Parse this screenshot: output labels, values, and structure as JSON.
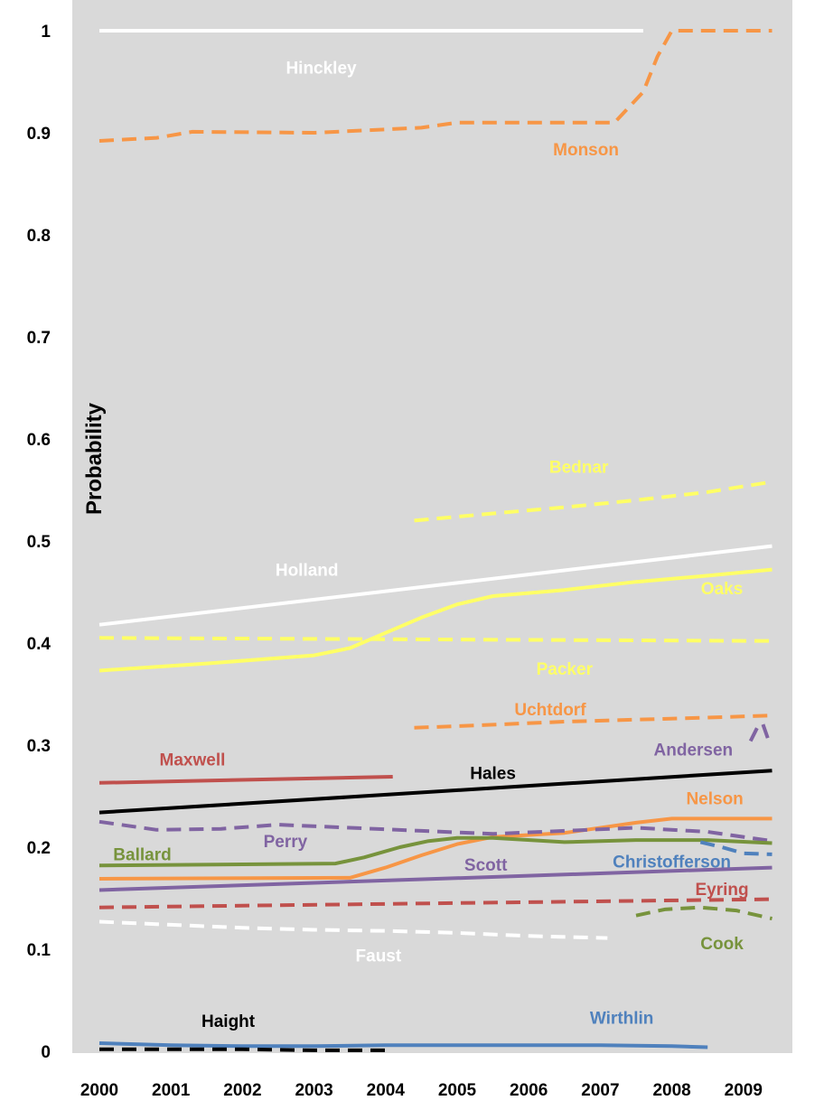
{
  "chart_data": {
    "type": "line",
    "title": "",
    "xlabel": "",
    "ylabel": "Probability",
    "xlim": [
      2000,
      2009
    ],
    "ylim": [
      0,
      1
    ],
    "x_ticks": [
      "2000",
      "2001",
      "2002",
      "2003",
      "2004",
      "2005",
      "2006",
      "2007",
      "2008",
      "2009"
    ],
    "y_ticks": [
      "0",
      "0.1",
      "0.2",
      "0.3",
      "0.4",
      "0.5",
      "0.6",
      "0.7",
      "0.8",
      "0.9",
      "1"
    ],
    "grid": false,
    "background": "#d9d9d9",
    "series": [
      {
        "name": "Hinckley",
        "color": "#ffffff",
        "dash": "solid",
        "x": [
          2000,
          2007.6
        ],
        "y": [
          1.0,
          1.0
        ],
        "label_x": 2003.1,
        "label_y": 0.958
      },
      {
        "name": "Monson",
        "color": "#f79646",
        "dash": "dashed",
        "x": [
          2000,
          2000.8,
          2001.3,
          2003.0,
          2004.5,
          2005.0,
          2007.2,
          2007.6,
          2007.8,
          2008.0,
          2009.4
        ],
        "y": [
          0.892,
          0.895,
          0.901,
          0.9,
          0.905,
          0.91,
          0.91,
          0.94,
          0.975,
          1.0,
          1.0
        ],
        "label_x": 2006.8,
        "label_y": 0.878
      },
      {
        "name": "Bednar",
        "color": "#ffff66",
        "dash": "dashed",
        "x": [
          2004.4,
          2005.5,
          2006.5,
          2007.5,
          2008.5,
          2009.4
        ],
        "y": [
          0.52,
          0.527,
          0.533,
          0.54,
          0.548,
          0.558
        ],
        "label_x": 2006.7,
        "label_y": 0.567
      },
      {
        "name": "Holland",
        "color": "#ffffff",
        "dash": "solid",
        "x": [
          2000,
          2009.4
        ],
        "y": [
          0.418,
          0.495
        ],
        "label_x": 2002.9,
        "label_y": 0.466
      },
      {
        "name": "Oaks",
        "color": "#ffff66",
        "dash": "solid",
        "x": [
          2000,
          2001.5,
          2003.0,
          2003.5,
          2004.0,
          2004.5,
          2005.0,
          2005.5,
          2006.5,
          2007.5,
          2008.5,
          2009.4
        ],
        "y": [
          0.373,
          0.38,
          0.388,
          0.395,
          0.41,
          0.425,
          0.438,
          0.446,
          0.452,
          0.46,
          0.466,
          0.472
        ],
        "label_x": 2008.7,
        "label_y": 0.448
      },
      {
        "name": "Packer",
        "color": "#ffff66",
        "dash": "dashed",
        "x": [
          2000,
          2009.4
        ],
        "y": [
          0.405,
          0.402
        ],
        "label_x": 2006.5,
        "label_y": 0.369
      },
      {
        "name": "Uchtdorf",
        "color": "#f79646",
        "dash": "dashed",
        "x": [
          2004.4,
          2005.5,
          2006.5,
          2007.5,
          2008.5,
          2009.4
        ],
        "y": [
          0.317,
          0.32,
          0.323,
          0.325,
          0.327,
          0.329
        ],
        "label_x": 2006.3,
        "label_y": 0.329
      },
      {
        "name": "Andersen",
        "color": "#8064a2",
        "dash": "dashed",
        "x": [
          2009.1,
          2009.2,
          2009.27,
          2009.35
        ],
        "y": [
          0.304,
          0.318,
          0.321,
          0.305
        ],
        "label_x": 2008.3,
        "label_y": 0.29
      },
      {
        "name": "Maxwell",
        "color": "#c0504d",
        "dash": "solid",
        "x": [
          2000,
          2004.1
        ],
        "y": [
          0.263,
          0.269
        ],
        "label_x": 2001.3,
        "label_y": 0.28
      },
      {
        "name": "Hales",
        "color": "#000000",
        "dash": "solid",
        "x": [
          2000,
          2009.4
        ],
        "y": [
          0.234,
          0.275
        ],
        "label_x": 2005.5,
        "label_y": 0.267
      },
      {
        "name": "Nelson",
        "color": "#f79646",
        "dash": "solid",
        "x": [
          2000,
          2003.5,
          2004.0,
          2004.5,
          2005.0,
          2005.5,
          2006.5,
          2007.5,
          2008.0,
          2009.4
        ],
        "y": [
          0.169,
          0.17,
          0.18,
          0.192,
          0.203,
          0.21,
          0.214,
          0.224,
          0.228,
          0.228
        ],
        "label_x": 2008.6,
        "label_y": 0.242
      },
      {
        "name": "Perry",
        "color": "#8064a2",
        "dash": "dashed",
        "x": [
          2000,
          2000.8,
          2001.7,
          2002.5,
          2003.5,
          2004.5,
          2005.5,
          2006.5,
          2007.5,
          2008.5,
          2009.4
        ],
        "y": [
          0.225,
          0.217,
          0.218,
          0.222,
          0.219,
          0.216,
          0.213,
          0.216,
          0.219,
          0.215,
          0.206
        ],
        "label_x": 2002.6,
        "label_y": 0.2
      },
      {
        "name": "Ballard",
        "color": "#77933c",
        "dash": "solid",
        "x": [
          2000,
          2003.3,
          2003.7,
          2004.2,
          2004.6,
          2005.0,
          2005.5,
          2006.5,
          2007.5,
          2008.5,
          2009.4
        ],
        "y": [
          0.182,
          0.184,
          0.19,
          0.2,
          0.206,
          0.209,
          0.209,
          0.205,
          0.207,
          0.207,
          0.204
        ],
        "label_x": 2000.6,
        "label_y": 0.187
      },
      {
        "name": "Christofferson",
        "color": "#4f81bd",
        "dash": "dashed",
        "x": [
          2008.4,
          2008.7,
          2009.0,
          2009.4
        ],
        "y": [
          0.205,
          0.2,
          0.194,
          0.193
        ],
        "label_x": 2008.0,
        "label_y": 0.18
      },
      {
        "name": "Scott",
        "color": "#8064a2",
        "dash": "solid",
        "x": [
          2000,
          2009.4
        ],
        "y": [
          0.158,
          0.18
        ],
        "label_x": 2005.4,
        "label_y": 0.177
      },
      {
        "name": "Eyring",
        "color": "#c0504d",
        "dash": "dashed",
        "x": [
          2000,
          2009.4
        ],
        "y": [
          0.141,
          0.149
        ],
        "label_x": 2008.7,
        "label_y": 0.153
      },
      {
        "name": "Cook",
        "color": "#77933c",
        "dash": "dashed",
        "x": [
          2007.5,
          2007.9,
          2008.4,
          2008.9,
          2009.4
        ],
        "y": [
          0.133,
          0.139,
          0.141,
          0.138,
          0.13
        ],
        "label_x": 2008.7,
        "label_y": 0.1
      },
      {
        "name": "Faust",
        "color": "#ffffff",
        "dash": "dashed",
        "x": [
          2000,
          2001,
          2002,
          2003,
          2004,
          2005,
          2006,
          2007.1
        ],
        "y": [
          0.127,
          0.124,
          0.121,
          0.119,
          0.118,
          0.116,
          0.113,
          0.111
        ],
        "label_x": 2003.9,
        "label_y": 0.088
      },
      {
        "name": "Wirthlin",
        "color": "#4f81bd",
        "dash": "solid",
        "x": [
          2000,
          2001,
          2002,
          2003,
          2004,
          2005,
          2006,
          2007,
          2008,
          2008.5
        ],
        "y": [
          0.008,
          0.006,
          0.005,
          0.005,
          0.006,
          0.006,
          0.006,
          0.006,
          0.005,
          0.004
        ],
        "label_x": 2007.3,
        "label_y": 0.027
      },
      {
        "name": "Haight",
        "color": "#000000",
        "dash": "dashed",
        "x": [
          2000,
          2001,
          2002,
          2003,
          2004
        ],
        "y": [
          0.002,
          0.002,
          0.002,
          0.001,
          0.001
        ],
        "label_x": 2001.8,
        "label_y": 0.024
      }
    ]
  }
}
